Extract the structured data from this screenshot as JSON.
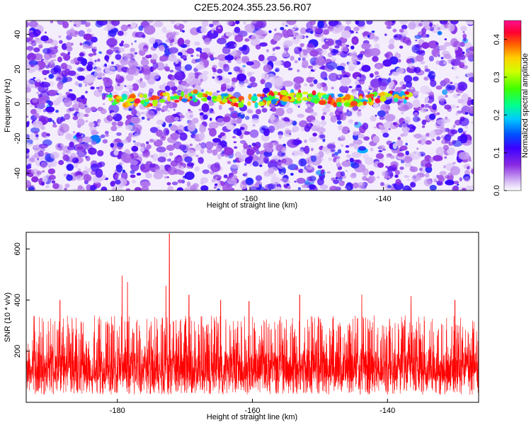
{
  "title": "C2E5.2024.355.23.56.R07",
  "chart_data": [
    {
      "type": "heatmap",
      "title": "C2E5.2024.355.23.56.R07",
      "xlabel": "Height of straight line (km)",
      "ylabel": "Frequency (Hz)",
      "xlim": [
        -193.5,
        -126.5
      ],
      "ylim": [
        -50,
        48
      ],
      "x_ticks": [
        -180,
        -160,
        -140
      ],
      "y_ticks": [
        -40,
        -20,
        0,
        20,
        40
      ],
      "colorbar": {
        "label": "Normalized spectral amplitude",
        "range": [
          0,
          0.45
        ],
        "ticks": [
          0.0,
          0.1,
          0.2,
          0.3,
          0.4
        ],
        "colors": [
          "#ffffff",
          "#c8a0f0",
          "#8a2be2",
          "#5000ff",
          "#0000ff",
          "#00a0ff",
          "#00ffff",
          "#00ff60",
          "#40ff00",
          "#c0ff00",
          "#ffff00",
          "#ff8000",
          "#ff0000",
          "#ff0080"
        ]
      },
      "signal_band_center_hz": 3,
      "signal_band_x_range_km": [
        -181,
        -136
      ],
      "peak_amplitude": 0.45
    },
    {
      "type": "line",
      "xlabel": "Height of straight line (km)",
      "ylabel": "SNR (10 * v/v)",
      "xlim": [
        -193.5,
        -126.5
      ],
      "ylim": [
        0,
        665
      ],
      "x_ticks": [
        -180,
        -160,
        -140
      ],
      "y_ticks": [
        200,
        400,
        600
      ],
      "line_color": "#ff0000",
      "baseline_range": [
        80,
        200
      ],
      "typical_max": 400,
      "peaks": [
        {
          "x": -172.3,
          "y": 660
        },
        {
          "x": -172.8,
          "y": 455
        },
        {
          "x": -179.3,
          "y": 495
        },
        {
          "x": -178.5,
          "y": 470
        },
        {
          "x": -169.4,
          "y": 420
        },
        {
          "x": -188.5,
          "y": 400
        },
        {
          "x": -164.7,
          "y": 400
        },
        {
          "x": -160.5,
          "y": 395
        },
        {
          "x": -153.0,
          "y": 420
        },
        {
          "x": -143.8,
          "y": 420
        },
        {
          "x": -136.5,
          "y": 415
        },
        {
          "x": -130.0,
          "y": 400
        }
      ]
    }
  ]
}
